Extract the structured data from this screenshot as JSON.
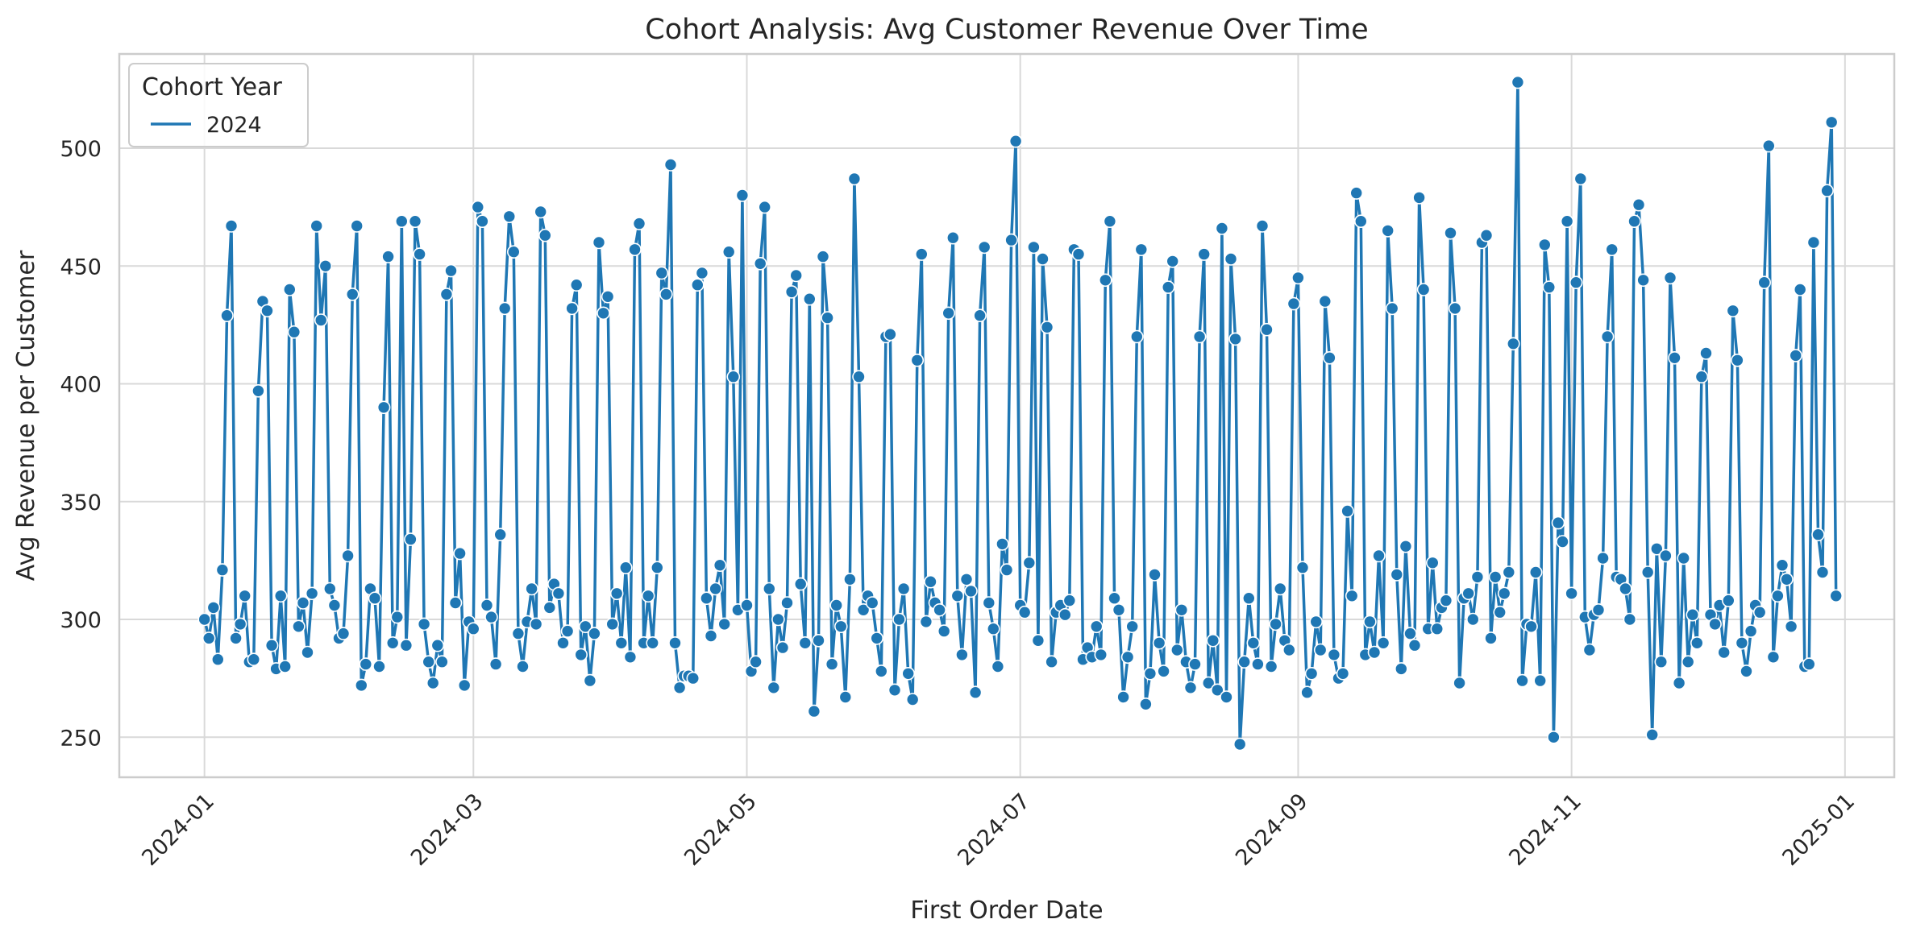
{
  "chart_data": {
    "type": "line",
    "title": "Cohort Analysis: Avg Customer Revenue Over Time",
    "xlabel": "First Order Date",
    "ylabel": "Avg Revenue per Customer",
    "x_ticks": [
      "2024-01",
      "2024-03",
      "2024-05",
      "2024-07",
      "2024-09",
      "2024-11",
      "2025-01"
    ],
    "y_ticks": [
      250,
      300,
      350,
      400,
      450,
      500
    ],
    "xlim": [
      "2023-12-13",
      "2025-01-12"
    ],
    "ylim": [
      233,
      540
    ],
    "grid": true,
    "legend": {
      "title": "Cohort Year",
      "placement": "top-left"
    },
    "series": [
      {
        "name": "2024",
        "color": "#1f77b4",
        "x_start": "2024-01-01",
        "x_step_days": 1,
        "values": [
          300,
          292,
          305,
          283,
          321,
          429,
          467,
          292,
          298,
          310,
          282,
          283,
          397,
          435,
          431,
          289,
          279,
          310,
          280,
          440,
          422,
          297,
          307,
          286,
          311,
          467,
          427,
          450,
          313,
          306,
          292,
          294,
          327,
          438,
          467,
          272,
          281,
          313,
          309,
          280,
          390,
          454,
          290,
          301,
          469,
          289,
          334,
          469,
          455,
          298,
          282,
          273,
          289,
          282,
          438,
          448,
          307,
          328,
          272,
          299,
          296,
          475,
          469,
          306,
          301,
          281,
          336,
          432,
          471,
          456,
          294,
          280,
          299,
          313,
          298,
          473,
          463,
          305,
          315,
          311,
          290,
          295,
          432,
          442,
          285,
          297,
          274,
          294,
          460,
          430,
          437,
          298,
          311,
          290,
          322,
          284,
          457,
          468,
          290,
          310,
          290,
          322,
          447,
          438,
          493,
          290,
          271,
          276,
          276,
          275,
          442,
          447,
          309,
          293,
          313,
          323,
          298,
          456,
          403,
          304,
          480,
          306,
          278,
          282,
          451,
          475,
          313,
          271,
          300,
          288,
          307,
          439,
          446,
          315,
          290,
          436,
          261,
          291,
          454,
          428,
          281,
          306,
          297,
          267,
          317,
          487,
          403,
          304,
          310,
          307,
          292,
          278,
          420,
          421,
          270,
          300,
          313,
          277,
          266,
          410,
          455,
          299,
          316,
          307,
          304,
          295,
          430,
          462,
          310,
          285,
          317,
          312,
          269,
          429,
          458,
          307,
          296,
          280,
          332,
          321,
          461,
          503,
          306,
          303,
          324,
          458,
          291,
          453,
          424,
          282,
          303,
          306,
          302,
          308,
          457,
          455,
          283,
          288,
          284,
          297,
          285,
          444,
          469,
          309,
          304,
          267,
          284,
          297,
          420,
          457,
          264,
          277,
          319,
          290,
          278,
          441,
          452,
          287,
          304,
          282,
          271,
          281,
          420,
          455,
          273,
          291,
          270,
          466,
          267,
          453,
          419,
          247,
          282,
          309,
          290,
          281,
          467,
          423,
          280,
          298,
          313,
          291,
          287,
          434,
          445,
          322,
          269,
          277,
          299,
          287,
          435,
          411,
          285,
          275,
          277,
          346,
          310,
          481,
          469,
          285,
          299,
          286,
          327,
          290,
          465,
          432,
          319,
          279,
          331,
          294,
          289,
          479,
          440,
          296,
          324,
          296,
          305,
          308,
          464,
          432,
          273,
          309,
          311,
          300,
          318,
          460,
          463,
          292,
          318,
          303,
          311,
          320,
          417,
          528,
          274,
          298,
          297,
          320,
          274,
          459,
          441,
          250,
          341,
          333,
          469,
          311,
          443,
          487,
          301,
          287,
          302,
          304,
          326,
          420,
          457,
          318,
          317,
          313,
          300,
          469,
          476,
          444,
          320,
          251,
          330,
          282,
          327,
          445,
          411,
          273,
          326,
          282,
          302,
          290,
          403,
          413,
          302,
          298,
          306,
          286,
          308,
          431,
          410,
          290,
          278,
          295,
          306,
          303,
          443,
          501,
          284,
          310,
          323,
          317,
          297,
          412,
          440,
          280,
          281,
          460,
          336,
          320,
          482,
          511,
          310
        ]
      }
    ]
  }
}
